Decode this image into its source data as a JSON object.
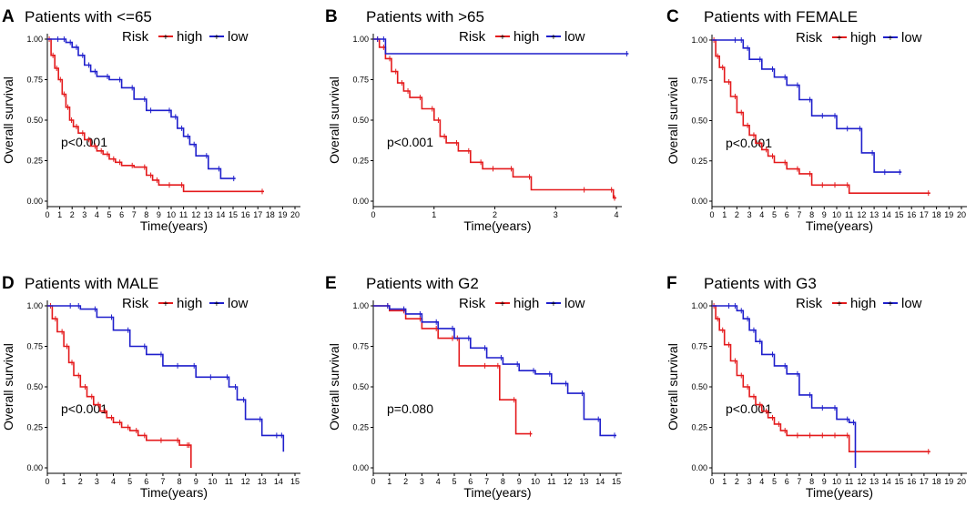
{
  "colors": {
    "high": "#e41a1c",
    "low": "#1f1fcc"
  },
  "legend": {
    "title": "Risk",
    "high": "high",
    "low": "low"
  },
  "chart_data": [
    {
      "type": "line",
      "panel": "A",
      "title": "Patients with <=65",
      "xlabel": "Time(years)",
      "ylabel": "Overall survival",
      "xlim": [
        0,
        20
      ],
      "ylim": [
        0,
        1
      ],
      "xticks": [
        0,
        1,
        2,
        3,
        4,
        5,
        6,
        7,
        8,
        9,
        10,
        11,
        12,
        13,
        14,
        15,
        16,
        17,
        18,
        19,
        20
      ],
      "yticks": [
        "0.00",
        "0.25",
        "0.50",
        "0.75",
        "1.00"
      ],
      "pvalue": "p<0.001",
      "series": [
        {
          "name": "high",
          "x": [
            0,
            0.3,
            0.6,
            0.9,
            1.2,
            1.5,
            1.8,
            2.1,
            2.5,
            3,
            3.5,
            4,
            4.5,
            5,
            5.5,
            6,
            7,
            8,
            8.5,
            9,
            10,
            11,
            17.5
          ],
          "y": [
            1,
            0.9,
            0.82,
            0.75,
            0.66,
            0.58,
            0.5,
            0.46,
            0.42,
            0.38,
            0.34,
            0.31,
            0.29,
            0.26,
            0.24,
            0.22,
            0.21,
            0.16,
            0.13,
            0.1,
            0.1,
            0.06,
            0.06
          ]
        },
        {
          "name": "low",
          "x": [
            0,
            1,
            1.5,
            2,
            2.5,
            3,
            3.5,
            4,
            5,
            6,
            7,
            8,
            8.5,
            10,
            10.5,
            11,
            11.5,
            12,
            13,
            14,
            15.2
          ],
          "y": [
            1,
            1,
            0.98,
            0.95,
            0.9,
            0.84,
            0.8,
            0.77,
            0.75,
            0.7,
            0.63,
            0.56,
            0.56,
            0.52,
            0.45,
            0.4,
            0.35,
            0.28,
            0.2,
            0.14,
            0.14
          ]
        }
      ]
    },
    {
      "type": "line",
      "panel": "B",
      "title": "Patients with >65",
      "xlabel": "Time(years)",
      "ylabel": "Overall survival",
      "xlim": [
        0,
        4
      ],
      "ylim": [
        0,
        1
      ],
      "xticks": [
        0,
        1,
        2,
        3,
        4
      ],
      "yticks": [
        "0.00",
        "0.25",
        "0.50",
        "0.75",
        "1.00"
      ],
      "pvalue": "p<0.001",
      "series": [
        {
          "name": "high",
          "x": [
            0,
            0.1,
            0.2,
            0.3,
            0.4,
            0.5,
            0.6,
            0.8,
            1,
            1.1,
            1.2,
            1.4,
            1.6,
            1.8,
            2,
            2.3,
            2.6,
            3.5,
            3.95,
            4
          ],
          "y": [
            1,
            0.95,
            0.88,
            0.8,
            0.73,
            0.68,
            0.64,
            0.57,
            0.5,
            0.4,
            0.36,
            0.31,
            0.24,
            0.2,
            0.2,
            0.15,
            0.07,
            0.07,
            0.02,
            0.02
          ]
        },
        {
          "name": "low",
          "x": [
            0,
            0.1,
            0.2,
            4.2
          ],
          "y": [
            1,
            1,
            0.91,
            0.91
          ]
        }
      ]
    },
    {
      "type": "line",
      "panel": "C",
      "title": "Patients with FEMALE",
      "xlabel": "Time(years)",
      "ylabel": "Overall survival",
      "xlim": [
        0,
        20
      ],
      "ylim": [
        0,
        1
      ],
      "xticks": [
        0,
        1,
        2,
        3,
        4,
        5,
        6,
        7,
        8,
        9,
        10,
        11,
        12,
        13,
        14,
        15,
        16,
        17,
        18,
        19,
        20
      ],
      "yticks": [
        "0.00",
        "0.25",
        "0.50",
        "0.75",
        "1.00"
      ],
      "pvalue": "p<0.001",
      "series": [
        {
          "name": "high",
          "x": [
            0,
            0.3,
            0.6,
            1,
            1.5,
            2,
            2.5,
            3,
            3.5,
            4,
            4.5,
            5,
            6,
            7,
            8,
            9,
            10,
            11,
            17.5
          ],
          "y": [
            1,
            0.9,
            0.83,
            0.74,
            0.65,
            0.55,
            0.47,
            0.41,
            0.36,
            0.32,
            0.28,
            0.24,
            0.2,
            0.17,
            0.1,
            0.1,
            0.1,
            0.05,
            0.05
          ]
        },
        {
          "name": "low",
          "x": [
            0,
            2,
            2.5,
            3,
            4,
            5,
            6,
            7,
            8,
            9,
            10,
            11,
            12,
            13,
            14,
            15.2
          ],
          "y": [
            1,
            1,
            0.95,
            0.88,
            0.82,
            0.77,
            0.72,
            0.63,
            0.53,
            0.53,
            0.45,
            0.45,
            0.3,
            0.18,
            0.18,
            0.18
          ]
        }
      ]
    },
    {
      "type": "line",
      "panel": "D",
      "title": "Patients with MALE",
      "xlabel": "Time(years)",
      "ylabel": "Overall survival",
      "xlim": [
        0,
        15
      ],
      "ylim": [
        0,
        1
      ],
      "xticks": [
        0,
        1,
        2,
        3,
        4,
        5,
        6,
        7,
        8,
        9,
        10,
        11,
        12,
        13,
        14,
        15
      ],
      "yticks": [
        "0.00",
        "0.25",
        "0.50",
        "0.75",
        "1.00"
      ],
      "pvalue": "p<0.001",
      "series": [
        {
          "name": "high",
          "x": [
            0,
            0.3,
            0.6,
            1,
            1.3,
            1.6,
            2,
            2.4,
            2.8,
            3.2,
            3.6,
            4,
            4.5,
            5,
            5.5,
            6,
            7,
            8,
            8.6,
            8.7
          ],
          "y": [
            1,
            0.92,
            0.84,
            0.75,
            0.65,
            0.57,
            0.5,
            0.44,
            0.39,
            0.35,
            0.31,
            0.28,
            0.25,
            0.23,
            0.2,
            0.17,
            0.17,
            0.14,
            0.14,
            0
          ]
        },
        {
          "name": "low",
          "x": [
            0,
            1.5,
            2,
            3,
            4,
            5,
            6,
            7,
            8,
            9,
            10,
            11,
            11.5,
            12,
            13,
            14,
            14.3
          ],
          "y": [
            1,
            1,
            0.98,
            0.93,
            0.85,
            0.75,
            0.7,
            0.63,
            0.63,
            0.56,
            0.56,
            0.5,
            0.42,
            0.3,
            0.2,
            0.2,
            0.1
          ]
        }
      ]
    },
    {
      "type": "line",
      "panel": "E",
      "title": "Patients with G2",
      "xlabel": "Time(years)",
      "ylabel": "Overall survival",
      "xlim": [
        0,
        15
      ],
      "ylim": [
        0,
        1
      ],
      "xticks": [
        0,
        1,
        2,
        3,
        4,
        5,
        6,
        7,
        8,
        9,
        10,
        11,
        12,
        13,
        14,
        15
      ],
      "yticks": [
        "0.00",
        "0.25",
        "0.50",
        "0.75",
        "1.00"
      ],
      "pvalue": "p=0.080",
      "series": [
        {
          "name": "high",
          "x": [
            0,
            1,
            2,
            3,
            4,
            5,
            5.3,
            7,
            7.8,
            8.8,
            9.8
          ],
          "y": [
            1,
            0.97,
            0.92,
            0.86,
            0.8,
            0.8,
            0.63,
            0.63,
            0.42,
            0.21,
            0.21
          ]
        },
        {
          "name": "low",
          "x": [
            0,
            1,
            2,
            3,
            4,
            5,
            6,
            7,
            8,
            9,
            10,
            11,
            12,
            13,
            14,
            15
          ],
          "y": [
            1,
            0.98,
            0.95,
            0.9,
            0.86,
            0.8,
            0.74,
            0.68,
            0.64,
            0.6,
            0.58,
            0.52,
            0.46,
            0.3,
            0.2,
            0.2
          ]
        }
      ]
    },
    {
      "type": "line",
      "panel": "F",
      "title": "Patients with G3",
      "xlabel": "Time(years)",
      "ylabel": "Overall survival",
      "xlim": [
        0,
        20
      ],
      "ylim": [
        0,
        1
      ],
      "xticks": [
        0,
        1,
        2,
        3,
        4,
        5,
        6,
        7,
        8,
        9,
        10,
        11,
        12,
        13,
        14,
        15,
        16,
        17,
        18,
        19,
        20
      ],
      "yticks": [
        "0.00",
        "0.25",
        "0.50",
        "0.75",
        "1.00"
      ],
      "pvalue": "p<0.001",
      "series": [
        {
          "name": "high",
          "x": [
            0,
            0.3,
            0.6,
            1,
            1.5,
            2,
            2.5,
            3,
            3.5,
            4,
            4.5,
            5,
            5.5,
            6,
            7,
            8,
            9,
            10,
            11,
            17.5
          ],
          "y": [
            1,
            0.92,
            0.85,
            0.76,
            0.66,
            0.57,
            0.5,
            0.44,
            0.39,
            0.35,
            0.31,
            0.27,
            0.23,
            0.2,
            0.2,
            0.2,
            0.2,
            0.2,
            0.1,
            0.1
          ]
        },
        {
          "name": "low",
          "x": [
            0,
            1.5,
            2,
            2.5,
            3,
            3.5,
            4,
            5,
            6,
            7,
            8,
            9,
            10,
            11,
            11.5
          ],
          "y": [
            1,
            1,
            0.97,
            0.92,
            0.85,
            0.78,
            0.7,
            0.63,
            0.58,
            0.45,
            0.37,
            0.37,
            0.3,
            0.28,
            0
          ]
        }
      ]
    }
  ]
}
